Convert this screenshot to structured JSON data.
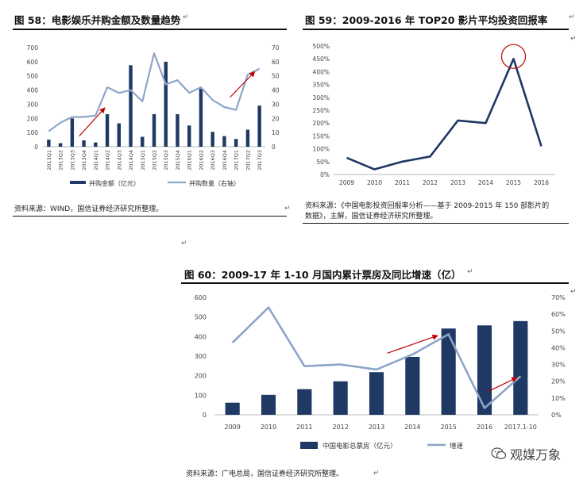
{
  "fig58": {
    "title": "图 58：电影娱乐并购金额及数量趋势",
    "source": "资料来源：WIND，国信证券经济研究所整理。",
    "legend": [
      "并购金额（亿元）",
      "并购数量（右轴）"
    ]
  },
  "fig59": {
    "title": "图 59：2009-2016 年 TOP20 影片平均投资回报率",
    "source_line1": "资料来源：《中国电影投资回报率分析——基于 2009-2015 年 150 部影片的",
    "source_line2": "数据》，主解，国信证券经济研究所整理。"
  },
  "fig60": {
    "title": "图 60：2009-17 年 1-10 月国内累计票房及同比增速（亿）",
    "source": "资料来源：广电总局，国信证券经济研究所整理。",
    "legend": [
      "中国电影总票房（亿元）",
      "增速"
    ]
  },
  "watermark": "观媒万象",
  "colors": {
    "bar": "#1f3864",
    "line2": "#8ea5c8",
    "line_dark": "#1f3864",
    "arrow": "#c00000"
  },
  "chart_data": [
    {
      "id": "fig58",
      "type": "bar",
      "title": "电影娱乐并购金额及数量趋势",
      "categories": [
        "2013Q1",
        "2013Q2",
        "2013Q3",
        "2013Q4",
        "2014Q1",
        "2014Q2",
        "2014Q3",
        "2014Q4",
        "2015Q1",
        "2015Q2",
        "2015Q3",
        "2015Q4",
        "2016Q1",
        "2016Q2",
        "2016Q3",
        "2016Q4",
        "2017Q1",
        "2017Q2",
        "2017Q3"
      ],
      "series": [
        {
          "name": "并购金额（亿元）",
          "axis": "left",
          "kind": "bar",
          "values": [
            50,
            25,
            200,
            45,
            30,
            230,
            165,
            575,
            70,
            230,
            600,
            230,
            150,
            410,
            105,
            75,
            55,
            120,
            290
          ]
        },
        {
          "name": "并购数量（右轴）",
          "axis": "right",
          "kind": "line",
          "values": [
            11,
            17,
            21,
            21,
            22,
            42,
            38,
            40,
            32,
            66,
            44,
            47,
            38,
            42,
            33,
            28,
            26,
            51,
            55
          ]
        }
      ],
      "y_left": {
        "min": 0,
        "max": 700,
        "ticks": [
          0,
          100,
          200,
          300,
          400,
          500,
          600,
          700
        ]
      },
      "y_right": {
        "min": 0,
        "max": 70,
        "ticks": [
          0,
          10,
          20,
          30,
          40,
          50,
          60,
          70
        ]
      },
      "annotations": [
        "red arrow up around 2013Q3-2014Q2",
        "red arrow up around 2017Q1-2017Q3"
      ]
    },
    {
      "id": "fig59",
      "type": "line",
      "title": "2009-2016 年 TOP20 影片平均投资回报率",
      "categories": [
        "2009",
        "2010",
        "2011",
        "2012",
        "2013",
        "2014",
        "2015",
        "2016"
      ],
      "series": [
        {
          "name": "平均投资回报率",
          "values": [
            65,
            20,
            50,
            70,
            210,
            200,
            450,
            110
          ]
        }
      ],
      "ylabel_unit": "%",
      "y": {
        "min": 0,
        "max": 500,
        "ticks": [
          0,
          50,
          100,
          150,
          200,
          250,
          300,
          350,
          400,
          450,
          500
        ]
      },
      "annotations": [
        "red circle around 2015 peak"
      ]
    },
    {
      "id": "fig60",
      "type": "bar",
      "title": "2009-17 年 1-10 月国内累计票房及同比增速（亿）",
      "categories": [
        "2009",
        "2010",
        "2011",
        "2012",
        "2013",
        "2014",
        "2015",
        "2016",
        "2017.1-10"
      ],
      "series": [
        {
          "name": "中国电影总票房（亿元）",
          "axis": "left",
          "kind": "bar",
          "values": [
            62,
            102,
            131,
            171,
            218,
            296,
            441,
            457,
            479
          ]
        },
        {
          "name": "增速",
          "axis": "right",
          "kind": "line",
          "values": [
            43,
            64,
            29,
            30,
            27,
            36,
            48,
            4,
            23
          ]
        }
      ],
      "y_left": {
        "min": 0,
        "max": 600,
        "ticks": [
          0,
          100,
          200,
          300,
          400,
          500,
          600
        ]
      },
      "y_right": {
        "min": 0,
        "max": 70,
        "ticks": [
          0,
          10,
          20,
          30,
          40,
          50,
          60,
          70
        ],
        "unit": "%"
      },
      "annotations": [
        "red arrow up around 2013-2015",
        "red arrow up around 2016-2017.1-10"
      ]
    }
  ]
}
